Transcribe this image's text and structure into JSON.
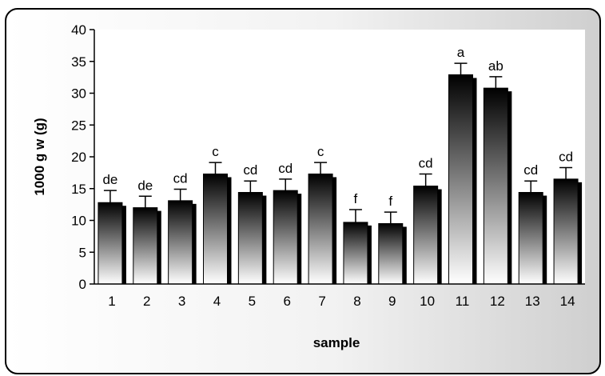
{
  "chart_data": {
    "type": "bar",
    "xlabel": "sample",
    "ylabel": "1000 g w (g)",
    "ylim": [
      0,
      40
    ],
    "yticks": [
      0,
      5,
      10,
      15,
      20,
      25,
      30,
      35,
      40
    ],
    "grid": false,
    "legend": "none",
    "categories": [
      "1",
      "2",
      "3",
      "4",
      "5",
      "6",
      "7",
      "8",
      "9",
      "10",
      "11",
      "12",
      "13",
      "14"
    ],
    "values": [
      12.8,
      12.0,
      13.1,
      17.3,
      14.4,
      14.7,
      17.3,
      9.7,
      9.5,
      15.4,
      32.9,
      30.8,
      14.4,
      16.5
    ],
    "error": [
      1.9,
      1.8,
      1.8,
      1.8,
      1.8,
      1.8,
      1.8,
      2.0,
      1.8,
      1.9,
      1.8,
      1.8,
      1.8,
      1.8
    ],
    "significance": [
      "de",
      "de",
      "cd",
      "c",
      "cd",
      "cd",
      "c",
      "f",
      "f",
      "cd",
      "a",
      "ab",
      "cd",
      "cd"
    ],
    "colors": {
      "bar_dark": "#000000",
      "bar_light": "#ffffff",
      "axis": "#000000"
    }
  }
}
